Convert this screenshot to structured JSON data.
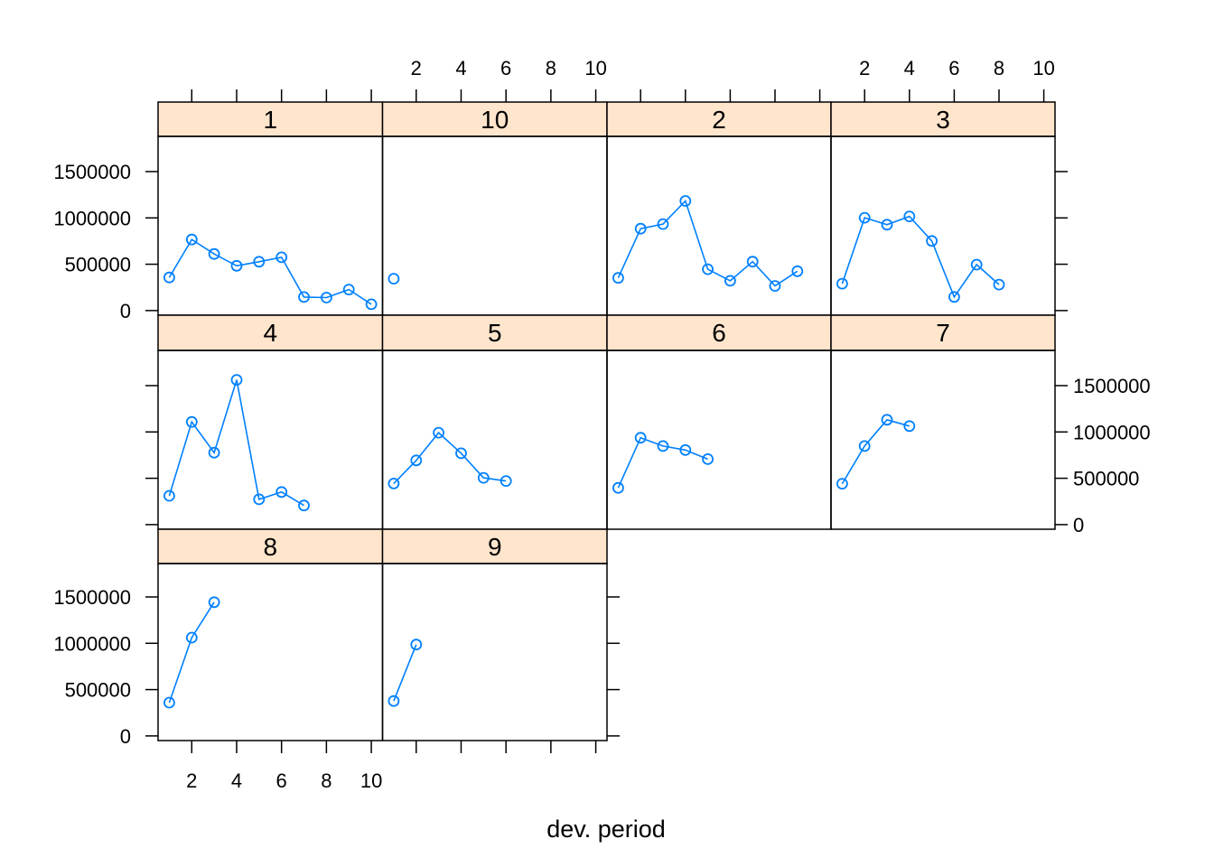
{
  "chart_data": {
    "type": "line",
    "xlabel": "dev. period",
    "ylabel": "",
    "xlim": [
      0.5,
      10.5
    ],
    "ylim": [
      -50000,
      1880000
    ],
    "x_ticks": [
      2,
      4,
      6,
      8,
      10
    ],
    "y_ticks": [
      0,
      500000,
      1000000,
      1500000
    ],
    "x_tick_labels": [
      "2",
      "4",
      "6",
      "8",
      "10"
    ],
    "y_tick_labels": [
      "0",
      "500000",
      "1000000",
      "1500000"
    ],
    "grid": false,
    "colors": {
      "series": "#0080ff",
      "strip": "#ffe5cc",
      "border": "#000000"
    },
    "marker": "open-circle",
    "layout": "4 columns x 3 rows",
    "panels": [
      {
        "label": "1",
        "x": [
          1,
          2,
          3,
          4,
          5,
          6,
          7,
          8,
          9,
          10
        ],
        "y": [
          357848,
          766940,
          610542,
          482940,
          527326,
          574398,
          146342,
          139950,
          227229,
          67948
        ]
      },
      {
        "label": "10",
        "x": [
          1
        ],
        "y": [
          344014
        ]
      },
      {
        "label": "2",
        "x": [
          1,
          2,
          3,
          4,
          5,
          6,
          7,
          8,
          9
        ],
        "y": [
          352118,
          884021,
          933894,
          1183289,
          445745,
          320996,
          527804,
          266172,
          425046
        ]
      },
      {
        "label": "3",
        "x": [
          1,
          2,
          3,
          4,
          5,
          6,
          7,
          8
        ],
        "y": [
          290507,
          1001799,
          926219,
          1016654,
          750816,
          146923,
          495992,
          280405
        ]
      },
      {
        "label": "4",
        "x": [
          1,
          2,
          3,
          4,
          5,
          6,
          7
        ],
        "y": [
          310608,
          1108250,
          776189,
          1562400,
          272482,
          352053,
          206286
        ]
      },
      {
        "label": "5",
        "x": [
          1,
          2,
          3,
          4,
          5,
          6
        ],
        "y": [
          443160,
          693190,
          991983,
          769488,
          504851,
          470639
        ]
      },
      {
        "label": "6",
        "x": [
          1,
          2,
          3,
          4,
          5
        ],
        "y": [
          396132,
          937085,
          847498,
          805037,
          705960
        ]
      },
      {
        "label": "7",
        "x": [
          1,
          2,
          3,
          4
        ],
        "y": [
          440832,
          847631,
          1131398,
          1063269
        ]
      },
      {
        "label": "8",
        "x": [
          1,
          2,
          3
        ],
        "y": [
          359480,
          1061648,
          1443370
        ]
      },
      {
        "label": "9",
        "x": [
          1,
          2
        ],
        "y": [
          376686,
          986608
        ]
      }
    ]
  }
}
